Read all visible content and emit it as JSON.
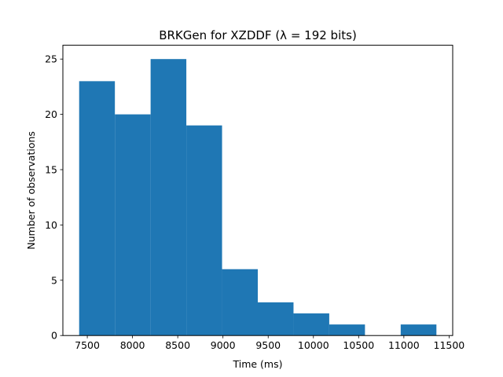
{
  "chart_data": {
    "type": "bar",
    "title": "BRKGen for XZDDF (λ = 192 bits)",
    "xlabel": "Time (ms)",
    "ylabel": "Number of observations",
    "bin_edges": [
      7410,
      7805,
      8200,
      8595,
      8990,
      9385,
      9780,
      10175,
      10570,
      10965,
      11360
    ],
    "values": [
      23,
      20,
      25,
      19,
      6,
      3,
      2,
      1,
      0,
      1
    ],
    "xlim": [
      7230,
      11540
    ],
    "ylim": [
      0,
      26.25
    ],
    "xticks": [
      7500,
      8000,
      8500,
      9000,
      9500,
      10000,
      10500,
      11000,
      11500
    ],
    "yticks": [
      0,
      5,
      10,
      15,
      20,
      25
    ],
    "bar_color": "#1f77b4",
    "grid": false,
    "legend": "none"
  }
}
